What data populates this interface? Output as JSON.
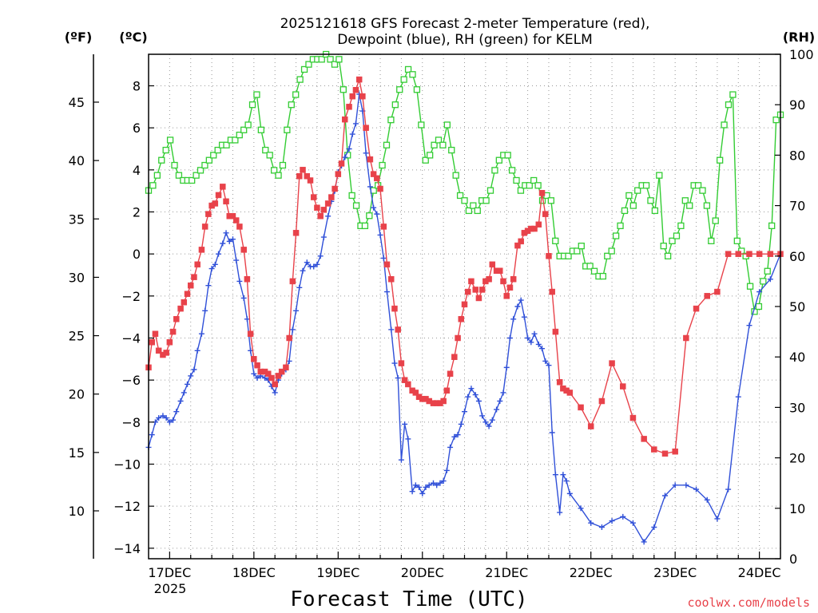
{
  "chart_data": {
    "type": "line",
    "title_line1": "2025121618 GFS Forecast 2-meter Temperature (red),",
    "title_line2": "Dewpoint (blue), RH (green) for KELM",
    "xlabel": "Forecast Time (UTC)",
    "credit": "coolwx.com/models",
    "unit_f": "(ºF)",
    "unit_c": "(ºC)",
    "unit_rh": "(RH)",
    "x_ticks": [
      "17DEC",
      "18DEC",
      "19DEC",
      "20DEC",
      "21DEC",
      "22DEC",
      "23DEC",
      "24DEC"
    ],
    "x_tick_sub": "2025",
    "x_range_days": [
      -0.25,
      7.25
    ],
    "c_range": [
      -14.5,
      9.5
    ],
    "c_ticks": [
      8,
      6,
      4,
      2,
      0,
      -2,
      -4,
      -6,
      -8,
      -10,
      -12,
      -14
    ],
    "f_ticks": [
      45,
      40,
      35,
      30,
      25,
      20,
      15,
      10
    ],
    "rh_range": [
      0,
      100
    ],
    "rh_ticks": [
      100,
      90,
      80,
      70,
      60,
      50,
      40,
      30,
      20,
      10,
      0
    ],
    "colors": {
      "temperature": "#e8424a",
      "dewpoint": "#3050d8",
      "rh": "#33cc33",
      "grid": "#999999"
    },
    "series": [
      {
        "name": "Temperature",
        "units": "C",
        "x": [
          -0.25,
          -0.21,
          -0.17,
          -0.13,
          -0.08,
          -0.04,
          0.0,
          0.04,
          0.08,
          0.13,
          0.17,
          0.21,
          0.25,
          0.29,
          0.33,
          0.38,
          0.42,
          0.46,
          0.5,
          0.54,
          0.58,
          0.63,
          0.67,
          0.71,
          0.75,
          0.79,
          0.83,
          0.88,
          0.92,
          0.96,
          1.0,
          1.04,
          1.08,
          1.13,
          1.17,
          1.21,
          1.25,
          1.29,
          1.33,
          1.38,
          1.42,
          1.46,
          1.5,
          1.54,
          1.58,
          1.63,
          1.67,
          1.71,
          1.75,
          1.79,
          1.83,
          1.88,
          1.92,
          1.96,
          2.0,
          2.04,
          2.08,
          2.13,
          2.17,
          2.21,
          2.25,
          2.29,
          2.33,
          2.38,
          2.42,
          2.46,
          2.5,
          2.54,
          2.58,
          2.63,
          2.67,
          2.71,
          2.75,
          2.79,
          2.83,
          2.88,
          2.92,
          2.96,
          3.0,
          3.04,
          3.08,
          3.13,
          3.17,
          3.21,
          3.25,
          3.29,
          3.33,
          3.38,
          3.42,
          3.46,
          3.5,
          3.54,
          3.58,
          3.63,
          3.67,
          3.71,
          3.75,
          3.79,
          3.83,
          3.88,
          3.92,
          3.96,
          4.0,
          4.04,
          4.08,
          4.13,
          4.17,
          4.21,
          4.25,
          4.29,
          4.33,
          4.38,
          4.42,
          4.46,
          4.5,
          4.54,
          4.58,
          4.63,
          4.67,
          4.71,
          4.75,
          4.88,
          5.0,
          5.13,
          5.25,
          5.38,
          5.5,
          5.63,
          5.75,
          5.88,
          6.0,
          6.13,
          6.25,
          6.38,
          6.5,
          6.63,
          6.75,
          6.88,
          7.0,
          7.13,
          7.25
        ],
        "values": [
          -5.4,
          -4.2,
          -3.8,
          -4.6,
          -4.8,
          -4.7,
          -4.2,
          -3.7,
          -3.1,
          -2.6,
          -2.3,
          -1.9,
          -1.5,
          -1.1,
          -0.5,
          0.2,
          1.3,
          1.9,
          2.3,
          2.4,
          2.8,
          3.2,
          2.5,
          1.8,
          1.8,
          1.6,
          1.3,
          0.2,
          -1.2,
          -3.8,
          -5.0,
          -5.3,
          -5.6,
          -5.6,
          -5.7,
          -5.9,
          -6.2,
          -5.8,
          -5.6,
          -5.4,
          -4.0,
          -1.3,
          1.0,
          3.7,
          4.0,
          3.7,
          3.5,
          2.7,
          2.2,
          1.8,
          2.1,
          2.4,
          2.7,
          3.1,
          3.8,
          4.3,
          6.4,
          7.0,
          7.5,
          7.8,
          8.3,
          7.5,
          6.0,
          4.5,
          3.8,
          3.6,
          3.1,
          1.3,
          -0.5,
          -1.2,
          -2.6,
          -3.6,
          -5.2,
          -6.0,
          -6.2,
          -6.5,
          -6.6,
          -6.8,
          -6.9,
          -6.9,
          -7.0,
          -7.1,
          -7.1,
          -7.1,
          -7.0,
          -6.5,
          -5.7,
          -4.9,
          -4.0,
          -3.1,
          -2.4,
          -1.8,
          -1.3,
          -1.7,
          -2.1,
          -1.7,
          -1.3,
          -1.2,
          -0.5,
          -0.8,
          -0.8,
          -1.3,
          -2.0,
          -1.6,
          -1.2,
          0.4,
          0.6,
          1.0,
          1.1,
          1.2,
          1.2,
          1.4,
          2.9,
          1.9,
          -0.1,
          -1.8,
          -3.7,
          -6.1,
          -6.4,
          -6.5,
          -6.6,
          -7.3,
          -8.2,
          -7.0,
          -5.2,
          -6.3,
          -7.8,
          -8.8,
          -9.3,
          -9.5,
          -9.4,
          -4.0,
          -2.6,
          -2.0,
          -1.8,
          0.0,
          0.0,
          0.0,
          0.0,
          0.0,
          0.0
        ],
        "note": "values after index 120 approximate the plotted trace"
      }
    ]
  }
}
